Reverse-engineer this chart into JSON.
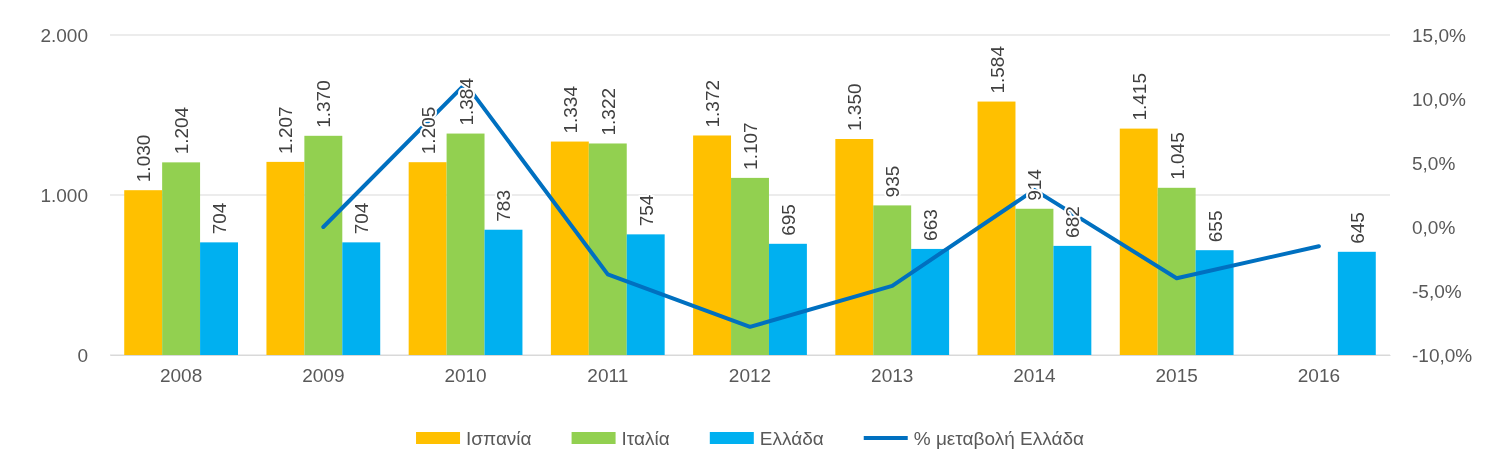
{
  "chart_data": {
    "type": "bar",
    "categories": [
      "2008",
      "2009",
      "2010",
      "2011",
      "2012",
      "2013",
      "2014",
      "2015",
      "2016"
    ],
    "series": [
      {
        "name": "Ισπανία",
        "color": "#ffc000",
        "values": [
          1030,
          1207,
          1205,
          1334,
          1372,
          1350,
          1584,
          1415,
          null
        ],
        "value_labels": [
          "1.030",
          "1.207",
          "1.205",
          "1.334",
          "1.372",
          "1.350",
          "1.584",
          "1.415",
          null
        ]
      },
      {
        "name": "Ιταλία",
        "color": "#92d050",
        "values": [
          1204,
          1370,
          1384,
          1322,
          1107,
          935,
          914,
          1045,
          null
        ],
        "value_labels": [
          "1.204",
          "1.370",
          "1.384",
          "1.322",
          "1.107",
          "935",
          "914",
          "1.045",
          null
        ]
      },
      {
        "name": "Ελλάδα",
        "color": "#00b0f0",
        "values": [
          704,
          704,
          783,
          754,
          695,
          663,
          682,
          655,
          645
        ],
        "value_labels": [
          "704",
          "704",
          "783",
          "754",
          "695",
          "663",
          "682",
          "655",
          "645"
        ]
      },
      {
        "name": "% μεταβολή Ελλάδα",
        "type": "line",
        "axis": "y2",
        "color": "#0070c0",
        "values": [
          null,
          0.0,
          11.2,
          -3.7,
          -7.8,
          -4.6,
          2.9,
          -4.0,
          -1.5
        ]
      }
    ],
    "ylim": [
      0,
      2000
    ],
    "yticks": [
      {
        "value": 0,
        "label": "0"
      },
      {
        "value": 1000,
        "label": "1.000"
      },
      {
        "value": 2000,
        "label": "2.000"
      }
    ],
    "y2lim": [
      -10,
      15
    ],
    "y2ticks": [
      {
        "value": -10,
        "label": "-10,0%"
      },
      {
        "value": -5,
        "label": "-5,0%"
      },
      {
        "value": 0,
        "label": "0,0%"
      },
      {
        "value": 5,
        "label": "5,0%"
      },
      {
        "value": 10,
        "label": "10,0%"
      },
      {
        "value": 15,
        "label": "15,0%"
      }
    ],
    "grid": "y",
    "legend": "bottom",
    "marker": "none",
    "line_style": "solid"
  }
}
